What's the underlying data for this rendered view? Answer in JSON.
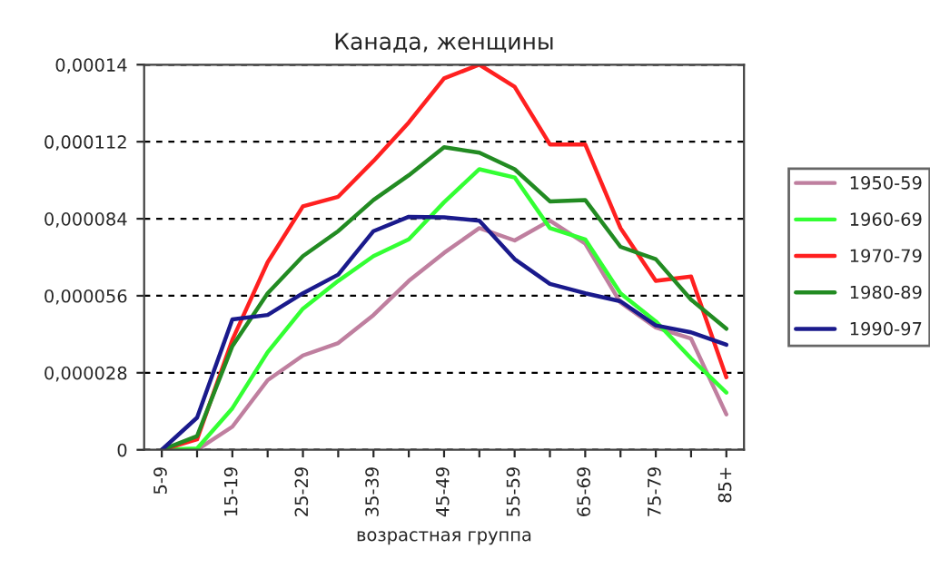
{
  "chart_data": {
    "type": "line",
    "title": "Канада, женщины",
    "xlabel": "возрастная группа",
    "categories": [
      "5-9",
      null,
      "15-19",
      null,
      "25-29",
      null,
      "35-39",
      null,
      "45-49",
      null,
      "55-59",
      null,
      "65-69",
      null,
      "75-79",
      null,
      "85+"
    ],
    "ylim": [
      0,
      0.00014
    ],
    "yticks": [
      {
        "value": 0,
        "label": "0"
      },
      {
        "value": 2.8e-05,
        "label": "0,000028"
      },
      {
        "value": 5.6e-05,
        "label": "0,000056"
      },
      {
        "value": 8.4e-05,
        "label": "0,000084"
      },
      {
        "value": 0.000112,
        "label": "0,000112"
      },
      {
        "value": 0.00014,
        "label": "0,00014"
      }
    ],
    "grid": "y",
    "legend": "right",
    "marker": "none",
    "line_style": "solid",
    "series": [
      {
        "name": "1950-59",
        "color": "#bf7f9f",
        "values": [
          0,
          0,
          8.4e-06,
          2.53e-05,
          3.43e-05,
          3.88e-05,
          4.9e-05,
          6.14e-05,
          7.16e-05,
          8.06e-05,
          7.61e-05,
          8.33e-05,
          7.5e-05,
          5.35e-05,
          4.45e-05,
          4.04e-05,
          1.29e-05
        ]
      },
      {
        "name": "1960-69",
        "color": "#33ff33",
        "values": [
          0,
          5e-07,
          1.51e-05,
          3.55e-05,
          5.13e-05,
          6.14e-05,
          7.04e-05,
          7.65e-05,
          9e-05,
          0.000102,
          9.9e-05,
          8.06e-05,
          7.65e-05,
          5.69e-05,
          4.67e-05,
          3.32e-05,
          2.08e-05
        ]
      },
      {
        "name": "1970-79",
        "color": "#ff2020",
        "values": [
          0,
          3.8e-06,
          4e-05,
          6.82e-05,
          8.85e-05,
          9.2e-05,
          0.000105,
          0.000119,
          0.000135,
          0.00014,
          0.000132,
          0.000111,
          0.000111,
          8.06e-05,
          6.14e-05,
          6.3e-05,
          2.64e-05
        ]
      },
      {
        "name": "1980-89",
        "color": "#228b22",
        "values": [
          0,
          5e-06,
          3.77e-05,
          5.69e-05,
          7.04e-05,
          7.95e-05,
          9.08e-05,
          9.98e-05,
          0.00011,
          0.000108,
          0.000102,
          9.03e-05,
          9.08e-05,
          7.38e-05,
          6.93e-05,
          5.46e-05,
          4.4e-05
        ]
      },
      {
        "name": "1990-97",
        "color": "#1a1a8c",
        "values": [
          0,
          1.17e-05,
          4.74e-05,
          4.9e-05,
          5.69e-05,
          6.37e-05,
          7.95e-05,
          8.47e-05,
          8.45e-05,
          8.33e-05,
          6.93e-05,
          6.03e-05,
          5.69e-05,
          5.4e-05,
          4.52e-05,
          4.27e-05,
          3.82e-05
        ]
      }
    ]
  }
}
